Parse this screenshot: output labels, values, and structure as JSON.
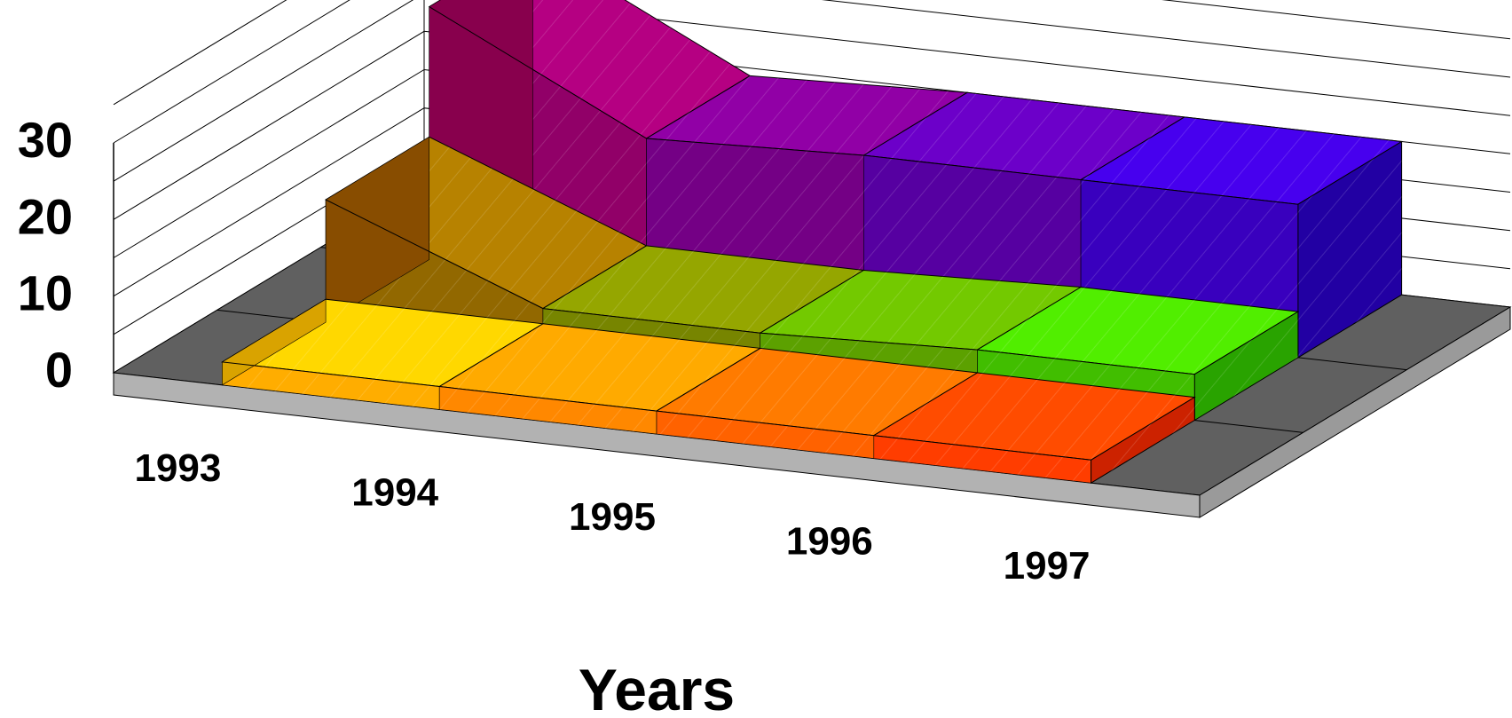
{
  "chart_data": {
    "type": "area",
    "chart_style": "3d-area",
    "title": "",
    "xlabel": "Years",
    "ylabel": "",
    "categories": [
      "1993",
      "1994",
      "1995",
      "1996",
      "1997"
    ],
    "ylim": [
      0,
      30
    ],
    "yticks": [
      "0",
      "10",
      "20",
      "30"
    ],
    "grid": true,
    "legend": "none",
    "series": [
      {
        "values": [
          3,
          3,
          3,
          3,
          3
        ],
        "colors": [
          "#ffc000",
          "#ff2a00"
        ]
      },
      {
        "values": [
          16,
          5,
          5,
          6,
          6
        ],
        "colors": [
          "#a05a00",
          "#33cc00"
        ]
      },
      {
        "values": [
          33,
          19,
          20,
          20,
          20
        ],
        "colors": [
          "#a0005a",
          "#2a00cc"
        ]
      }
    ]
  }
}
